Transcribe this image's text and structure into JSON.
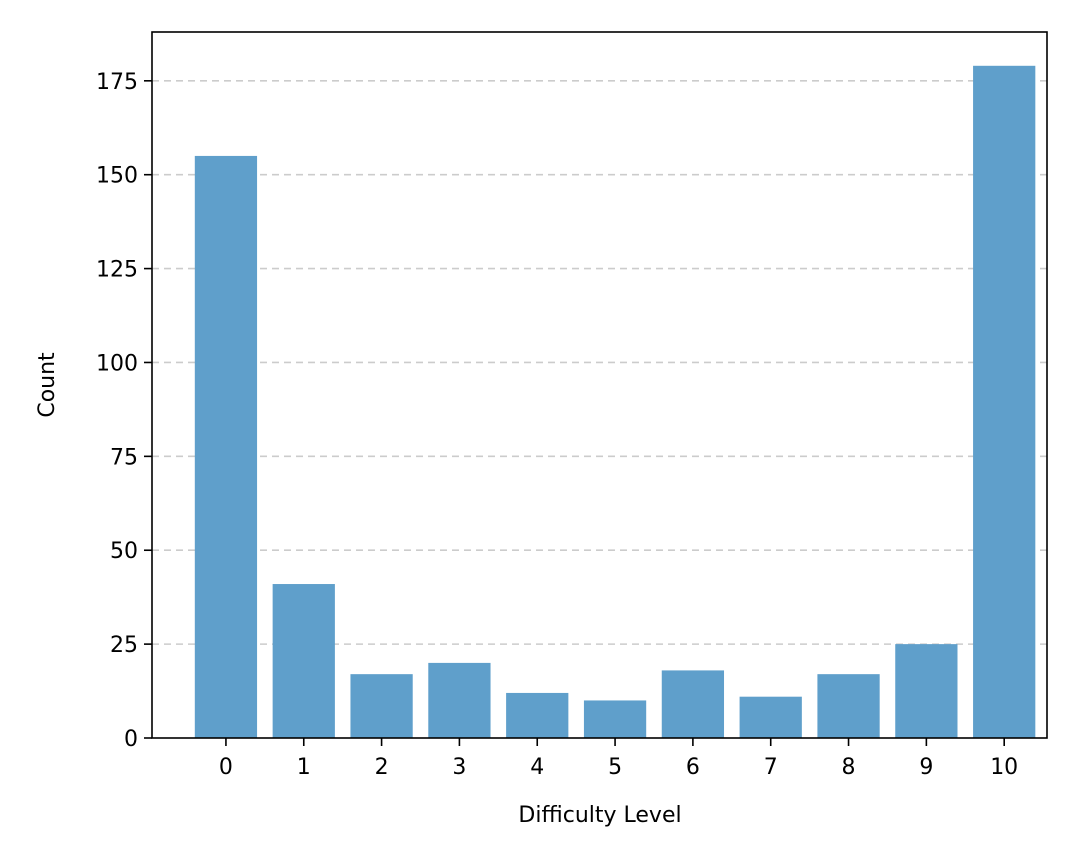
{
  "chart_data": {
    "type": "bar",
    "categories": [
      "0",
      "1",
      "2",
      "3",
      "4",
      "5",
      "6",
      "7",
      "8",
      "9",
      "10"
    ],
    "values": [
      155,
      41,
      17,
      20,
      12,
      10,
      18,
      11,
      17,
      25,
      179
    ],
    "xlabel": "Difficulty Level",
    "ylabel": "Count",
    "ylim": [
      0,
      188
    ],
    "yticks": [
      0,
      25,
      50,
      75,
      100,
      125,
      150,
      175
    ],
    "grid": "y-dashed",
    "bar_color": "#5f9fcb",
    "grid_color": "#cccccc"
  }
}
